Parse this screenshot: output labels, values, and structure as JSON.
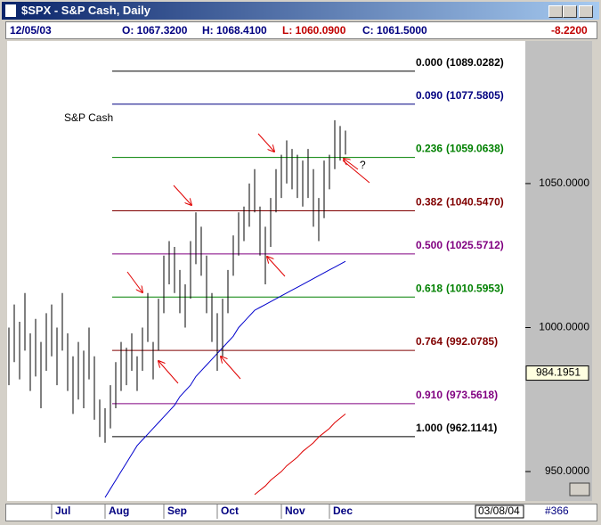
{
  "window": {
    "title": "$SPX - S&P Cash, Daily",
    "date": "12/05/03",
    "open": "O: 1067.3200",
    "high": "H: 1068.4100",
    "low": "L: 1060.0900",
    "close": "C: 1061.5000",
    "change": "-8.2200",
    "cursor_date": "03/08/04",
    "bar_count": "#366"
  },
  "chart_data": {
    "type": "range_bar",
    "annotation": "S&P Cash",
    "question": "?",
    "color": "#000000",
    "categories": [
      null,
      null,
      null,
      null,
      null,
      null,
      null,
      null,
      "Jul",
      null,
      null,
      null,
      null,
      null,
      null,
      null,
      null,
      null,
      "Aug",
      null,
      null,
      null,
      null,
      null,
      null,
      null,
      null,
      null,
      null,
      "Sep",
      null,
      null,
      null,
      null,
      null,
      null,
      null,
      null,
      null,
      "Oct",
      null,
      null,
      null,
      null,
      null,
      null,
      null,
      null,
      null,
      null,
      null,
      "Nov",
      null,
      null,
      null,
      null,
      null,
      null,
      null,
      null,
      "Dec",
      null,
      null,
      null
    ],
    "high": [
      1000,
      1008,
      1002,
      1012,
      998,
      1003,
      995,
      1005,
      1008,
      1000,
      1012,
      998,
      990,
      995,
      992,
      1000,
      990,
      975,
      972,
      980,
      988,
      995,
      993,
      998,
      990,
      1000,
      1012,
      995,
      1010,
      1025,
      1030,
      1028,
      1020,
      1015,
      1030,
      1040,
      1035,
      1025,
      1012,
      1005,
      1010,
      1020,
      1032,
      1040,
      1042,
      1050,
      1055,
      1042,
      1035,
      1045,
      1055,
      1060,
      1065,
      1062,
      1060,
      1058,
      1062,
      1055,
      1045,
      1058,
      1060,
      1072,
      1070,
      1068.41
    ],
    "low": [
      980,
      988,
      982,
      992,
      978,
      983,
      972,
      985,
      990,
      980,
      992,
      978,
      970,
      975,
      972,
      982,
      968,
      962,
      960,
      965,
      972,
      978,
      980,
      985,
      978,
      985,
      995,
      982,
      992,
      1005,
      1015,
      1012,
      1005,
      1000,
      1010,
      1022,
      1018,
      1005,
      995,
      985,
      990,
      1005,
      1018,
      1025,
      1030,
      1035,
      1040,
      1025,
      1015,
      1028,
      1040,
      1045,
      1050,
      1048,
      1045,
      1042,
      1045,
      1035,
      1030,
      1038,
      1048,
      1055,
      1058,
      1060.09
    ],
    "lines": [
      {
        "color": "#0000cc",
        "values": [
          null,
          null,
          null,
          null,
          null,
          null,
          null,
          null,
          null,
          null,
          null,
          null,
          null,
          null,
          null,
          null,
          null,
          null,
          941,
          944,
          947,
          950,
          953,
          956,
          959,
          961,
          963,
          965,
          967,
          969,
          971,
          973,
          976,
          978,
          980,
          983,
          985,
          987,
          989,
          991,
          993,
          995,
          997,
          1000,
          1002,
          1004,
          1006,
          1007,
          1008,
          1009,
          1010,
          1011,
          1012,
          1013,
          1014,
          1015,
          1016,
          1017,
          1018,
          1019,
          1020,
          1021,
          1022,
          1023
        ]
      },
      {
        "color": "#dd0000",
        "values": [
          null,
          null,
          null,
          null,
          null,
          null,
          null,
          null,
          null,
          null,
          null,
          null,
          null,
          null,
          null,
          null,
          null,
          null,
          null,
          null,
          null,
          null,
          null,
          null,
          null,
          null,
          null,
          null,
          null,
          null,
          null,
          null,
          null,
          null,
          null,
          null,
          null,
          null,
          null,
          null,
          null,
          null,
          null,
          null,
          null,
          null,
          942,
          943.5,
          945,
          947,
          948.5,
          950,
          952,
          953.5,
          955,
          957,
          958.5,
          960,
          962,
          963.5,
          965,
          967,
          968.5,
          970
        ]
      }
    ],
    "fib_levels": [
      {
        "ratio": "0.000",
        "price": 1089.0282,
        "price_label": "(1089.0282)",
        "color": "#000000"
      },
      {
        "ratio": "0.090",
        "price": 1077.5805,
        "price_label": "(1077.5805)",
        "color": "#000080"
      },
      {
        "ratio": "0.236",
        "price": 1059.0638,
        "price_label": "(1059.0638)",
        "color": "#008000"
      },
      {
        "ratio": "0.382",
        "price": 1040.547,
        "price_label": "(1040.5470)",
        "color": "#800000"
      },
      {
        "ratio": "0.500",
        "price": 1025.5712,
        "price_label": "(1025.5712)",
        "color": "#800080"
      },
      {
        "ratio": "0.618",
        "price": 1010.5953,
        "price_label": "(1010.5953)",
        "color": "#008000"
      },
      {
        "ratio": "0.764",
        "price": 992.0785,
        "price_label": "(992.0785)",
        "color": "#800000"
      },
      {
        "ratio": "0.910",
        "price": 973.5618,
        "price_label": "(973.5618)",
        "color": "#800080"
      },
      {
        "ratio": "1.000",
        "price": 962.1141,
        "price_label": "(962.1141)",
        "color": "#000000"
      }
    ],
    "ylim": [
      939.8,
      1099.5
    ],
    "yticks": [
      {
        "value": 1050,
        "label": "1050.0000"
      },
      {
        "value": 1000,
        "label": "1000.0000"
      },
      {
        "value": 950,
        "label": "950.0000"
      }
    ],
    "last_value": 984.1951
  }
}
